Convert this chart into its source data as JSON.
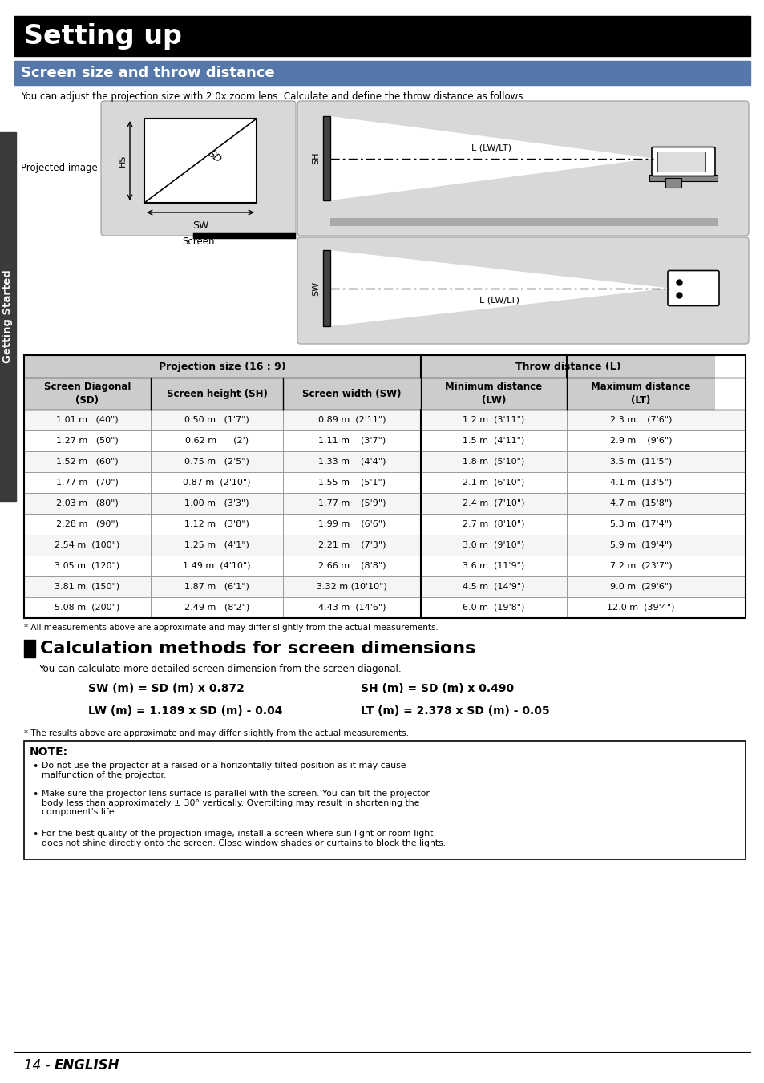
{
  "page_title": "Setting up",
  "section_title": "Screen size and throw distance",
  "section_intro": "You can adjust the projection size with 2.0x zoom lens. Calculate and define the throw distance as follows.",
  "table_header_row1_left": "Projection size (16 : 9)",
  "table_header_row1_right": "Throw distance (L)",
  "table_header_row2": [
    "Screen Diagonal\n(SD)",
    "Screen height (SH)",
    "Screen width (SW)",
    "Minimum distance\n(LW)",
    "Maximum distance\n(LT)"
  ],
  "table_data": [
    [
      "1.01 m   (40\")",
      "0.50 m   (1'7\")",
      "0.89 m  (2'11\")",
      "1.2 m  (3'11\")",
      "2.3 m    (7'6\")"
    ],
    [
      "1.27 m   (50\")",
      "0.62 m      (2')",
      "1.11 m    (3'7\")",
      "1.5 m  (4'11\")",
      "2.9 m    (9'6\")"
    ],
    [
      "1.52 m   (60\")",
      "0.75 m   (2'5\")",
      "1.33 m    (4'4\")",
      "1.8 m  (5'10\")",
      "3.5 m  (11'5\")"
    ],
    [
      "1.77 m   (70\")",
      "0.87 m  (2'10\")",
      "1.55 m    (5'1\")",
      "2.1 m  (6'10\")",
      "4.1 m  (13'5\")"
    ],
    [
      "2.03 m   (80\")",
      "1.00 m   (3'3\")",
      "1.77 m    (5'9\")",
      "2.4 m  (7'10\")",
      "4.7 m  (15'8\")"
    ],
    [
      "2.28 m   (90\")",
      "1.12 m   (3'8\")",
      "1.99 m    (6'6\")",
      "2.7 m  (8'10\")",
      "5.3 m  (17'4\")"
    ],
    [
      "2.54 m  (100\")",
      "1.25 m   (4'1\")",
      "2.21 m    (7'3\")",
      "3.0 m  (9'10\")",
      "5.9 m  (19'4\")"
    ],
    [
      "3.05 m  (120\")",
      "1.49 m  (4'10\")",
      "2.66 m    (8'8\")",
      "3.6 m  (11'9\")",
      "7.2 m  (23'7\")"
    ],
    [
      "3.81 m  (150\")",
      "1.87 m   (6'1\")",
      "3.32 m (10'10\")",
      "4.5 m  (14'9\")",
      "9.0 m  (29'6\")"
    ],
    [
      "5.08 m  (200\")",
      "2.49 m   (8'2\")",
      "4.43 m  (14'6\")",
      "6.0 m  (19'8\")",
      "12.0 m  (39'4\")"
    ]
  ],
  "table_footnote": "* All measurements above are approximate and may differ slightly from the actual measurements.",
  "calc_section_title": "Calculation methods for screen dimensions",
  "calc_intro": "You can calculate more detailed screen dimension from the screen diagonal.",
  "calc_formulas": [
    [
      "SW (m) = SD (m) x 0.872",
      "SH (m) = SD (m) x 0.490"
    ],
    [
      "LW (m) = 1.189 x SD (m) - 0.04",
      "LT (m) = 2.378 x SD (m) - 0.05"
    ]
  ],
  "calc_footnote": "* The results above are approximate and may differ slightly from the actual measurements.",
  "note_title": "NOTE:",
  "note_bullets": [
    "Do not use the projector at a raised or a horizontally tilted position as it may cause\nmalfunction of the projector.",
    "Make sure the projector lens surface is parallel with the screen. You can tilt the projector\nbody less than approximately ± 30° vertically. Overtilting may result in shortening the\ncomponent's life.",
    "For the best quality of the projection image, install a screen where sun light or room light\ndoes not shine directly onto the screen. Close window shades or curtains to block the lights."
  ],
  "page_footer": "14 -",
  "page_footer2": "ENGLISH",
  "sidebar_text": "Getting Started",
  "bg_color": "#ffffff",
  "title_bar_color": "#000000",
  "section_bar_color": "#5577aa",
  "sidebar_color": "#3a3a3a",
  "table_header_bg": "#cccccc",
  "diag_bg": "#d8d8d8"
}
